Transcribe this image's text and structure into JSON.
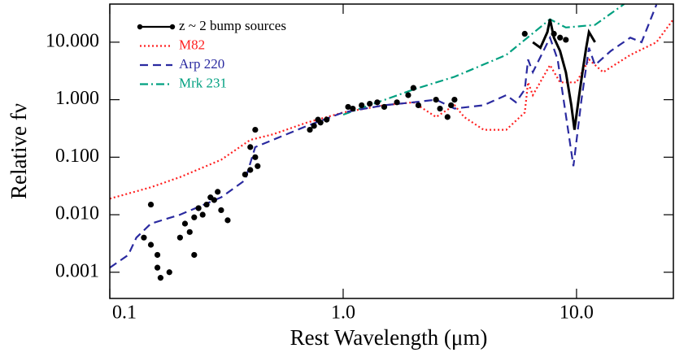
{
  "chart_data": {
    "type": "line",
    "x_label": "Rest Wavelength (μm)",
    "y_label": "Relative fν",
    "log_x": true,
    "log_y": true,
    "xlim": [
      0.1,
      26
    ],
    "ylim": [
      0.00035,
      46
    ],
    "xticks": [
      0.1,
      {
        "value": 1,
        "label": "1.0"
      },
      {
        "value": 10,
        "label": "10.0"
      }
    ],
    "yticks": [
      {
        "value": 0.001,
        "label": "0.001"
      },
      {
        "value": 0.01,
        "label": "0.010"
      },
      {
        "value": 0.1,
        "label": "0.100"
      },
      {
        "value": 1,
        "label": "1.000"
      },
      {
        "value": 10,
        "label": "10.000"
      }
    ],
    "legend": "upper left",
    "series": [
      {
        "name": "z ~ 2 bump sources",
        "color": "#000000",
        "dash": "solid",
        "marker": true,
        "x": [
          6.5,
          7,
          7.5,
          7.7,
          8,
          8.5,
          9,
          9.5,
          9.8,
          10.2,
          10.6,
          11,
          11.3,
          12
        ],
        "values": [
          10,
          8,
          15,
          25,
          12,
          7,
          3,
          0.8,
          0.3,
          1,
          3,
          8,
          15,
          10
        ]
      },
      {
        "name": "M82",
        "color": "#ff2020",
        "dash": "dotted",
        "x": [
          0.1,
          0.15,
          0.2,
          0.3,
          0.4,
          0.5,
          0.7,
          1,
          1.5,
          2,
          2.5,
          3,
          3.3,
          4,
          5,
          6,
          6.2,
          6.5,
          7.7,
          8.5,
          10,
          11.3,
          13,
          17,
          22,
          26
        ],
        "values": [
          0.019,
          0.03,
          0.045,
          0.09,
          0.2,
          0.25,
          0.4,
          0.6,
          0.8,
          0.9,
          0.5,
          0.8,
          0.5,
          0.3,
          0.3,
          0.6,
          2,
          1.2,
          4,
          2,
          2,
          5,
          3,
          6,
          10,
          25
        ]
      },
      {
        "name": "Arp 220",
        "color": "#2a2aa0",
        "dash": "dashed",
        "x": [
          0.1,
          0.12,
          0.13,
          0.15,
          0.2,
          0.3,
          0.38,
          0.42,
          0.5,
          0.7,
          1,
          1.5,
          2,
          2.5,
          3,
          4,
          5,
          5.5,
          6,
          6.2,
          6.5,
          7.7,
          8.3,
          9.7,
          10.5,
          11.3,
          12,
          14,
          17,
          19,
          22
        ],
        "values": [
          0.0012,
          0.002,
          0.004,
          0.007,
          0.01,
          0.02,
          0.04,
          0.15,
          0.2,
          0.35,
          0.6,
          0.8,
          0.9,
          1,
          0.7,
          0.8,
          1.2,
          0.9,
          1.5,
          5,
          3,
          12,
          5,
          0.07,
          1,
          8,
          4,
          7,
          12,
          10,
          45
        ]
      },
      {
        "name": "Mrk 231",
        "color": "#00a080",
        "dash": "dashdot",
        "x": [
          1,
          2,
          3,
          5,
          7.7,
          9,
          12,
          16
        ],
        "values": [
          0.55,
          1.5,
          2.5,
          6,
          25,
          18,
          20,
          46
        ]
      }
    ],
    "points": {
      "color": "#000000",
      "x": [
        0.14,
        0.15,
        0.16,
        0.16,
        0.165,
        0.15,
        0.18,
        0.2,
        0.21,
        0.22,
        0.23,
        0.24,
        0.25,
        0.26,
        0.27,
        0.28,
        0.29,
        0.3,
        0.32,
        0.23,
        0.38,
        0.4,
        0.42,
        0.43,
        0.4,
        0.42,
        0.72,
        0.75,
        0.78,
        0.8,
        0.85,
        1.05,
        1.1,
        1.2,
        1.3,
        1.4,
        1.5,
        1.7,
        1.9,
        2,
        2.1,
        2.5,
        2.6,
        2.8,
        2.9,
        3,
        6,
        8.5,
        9,
        8
      ],
      "values": [
        0.004,
        0.003,
        0.002,
        0.0012,
        0.0008,
        0.015,
        0.001,
        0.004,
        0.007,
        0.005,
        0.009,
        0.013,
        0.01,
        0.015,
        0.02,
        0.018,
        0.025,
        0.012,
        0.008,
        0.002,
        0.05,
        0.06,
        0.1,
        0.07,
        0.15,
        0.3,
        0.3,
        0.35,
        0.45,
        0.4,
        0.45,
        0.75,
        0.7,
        0.8,
        0.85,
        0.9,
        0.75,
        0.9,
        1.2,
        1.6,
        0.8,
        1,
        0.7,
        0.5,
        0.8,
        1,
        14,
        12,
        11,
        14
      ]
    }
  }
}
